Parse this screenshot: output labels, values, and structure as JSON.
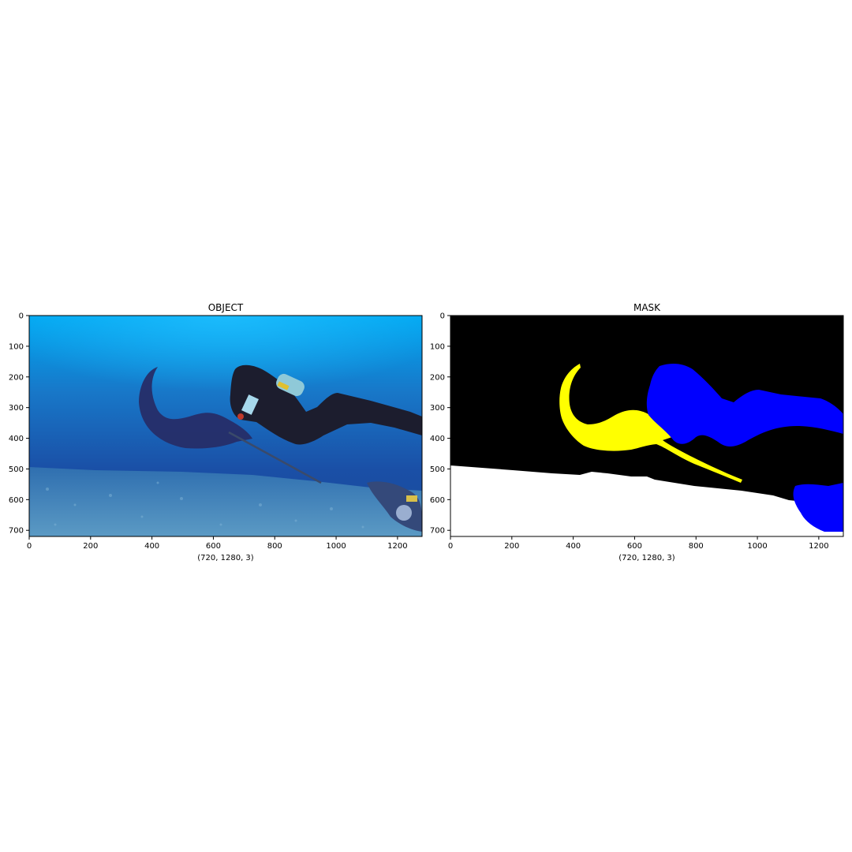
{
  "panels": [
    {
      "id": "object",
      "title": "OBJECT",
      "xlabel": "(720, 1280, 3)",
      "x_ticks": [
        0,
        200,
        400,
        600,
        800,
        1000,
        1200
      ],
      "y_ticks": [
        0,
        100,
        200,
        300,
        400,
        500,
        600,
        700
      ],
      "x_range": [
        0,
        1280
      ],
      "y_range": [
        0,
        720
      ]
    },
    {
      "id": "mask",
      "title": "MASK",
      "xlabel": "(720, 1280, 3)",
      "x_ticks": [
        0,
        200,
        400,
        600,
        800,
        1000,
        1200
      ],
      "y_ticks": [
        0,
        100,
        200,
        300,
        400,
        500,
        600,
        700
      ],
      "x_range": [
        0,
        1280
      ],
      "y_range": [
        0,
        720
      ],
      "colors": {
        "background": "#000000",
        "seafloor": "#ffffff",
        "manta": "#ffff00",
        "diver": "#0000ff"
      }
    }
  ]
}
